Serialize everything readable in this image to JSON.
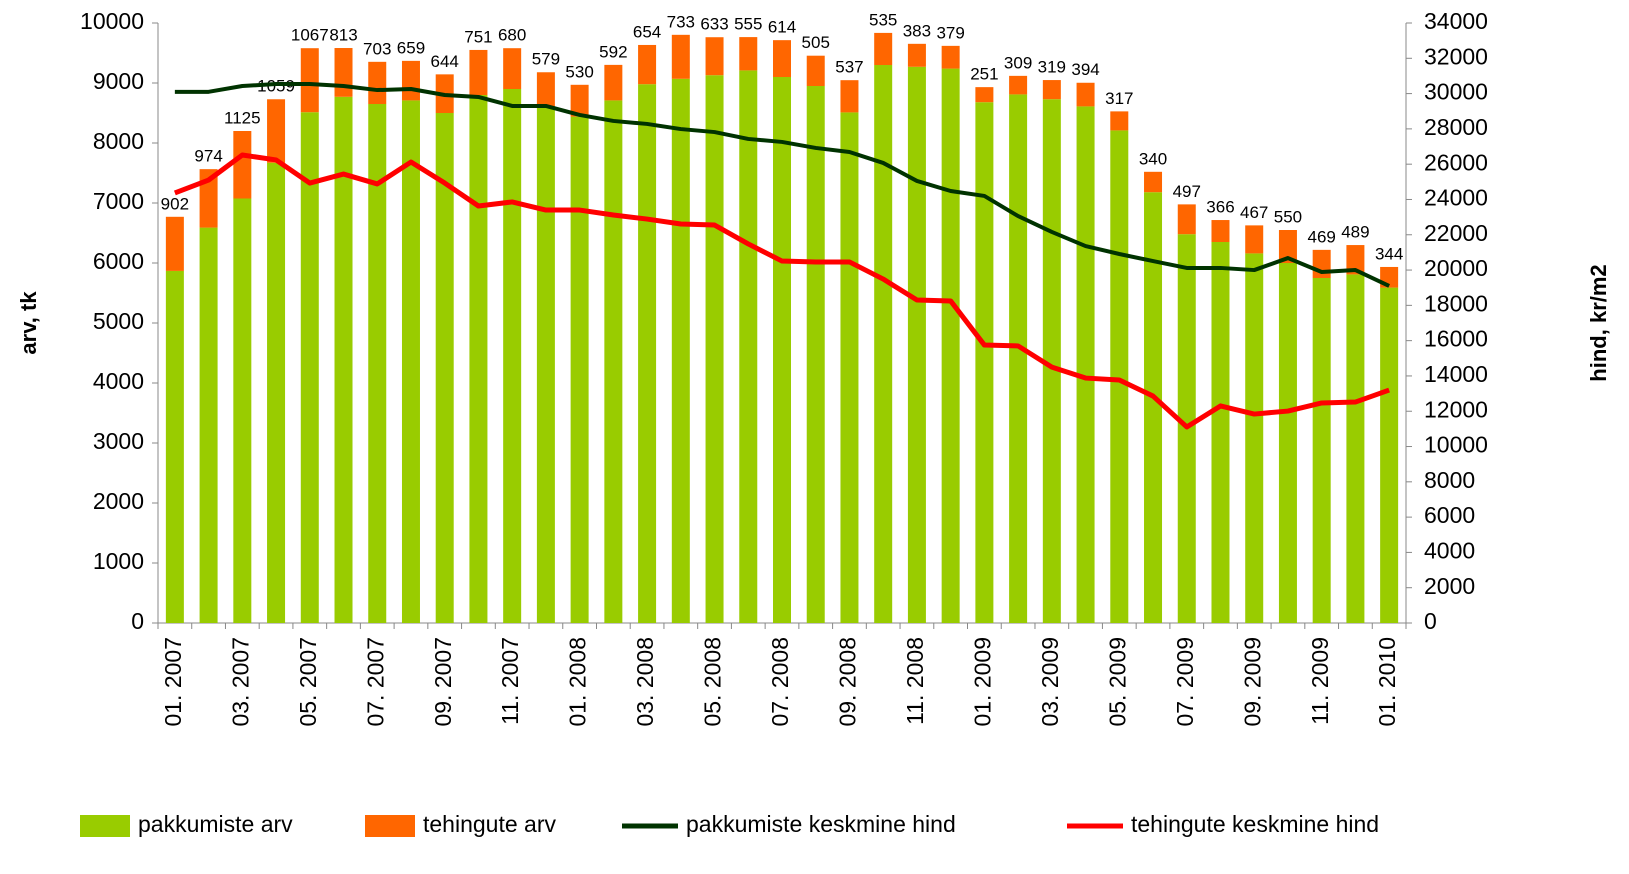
{
  "chart_data": {
    "type": "bar",
    "stacked": true,
    "categories": [
      "01. 2007",
      null,
      "03. 2007",
      null,
      "05. 2007",
      null,
      "07. 2007",
      null,
      "09. 2007",
      null,
      "11. 2007",
      null,
      "01. 2008",
      null,
      "03. 2008",
      null,
      "05. 2008",
      null,
      "07. 2008",
      null,
      "09. 2008",
      null,
      "11. 2008",
      null,
      "01. 2009",
      null,
      "03. 2009",
      null,
      "05. 2009",
      null,
      "07. 2009",
      null,
      "09. 2009",
      null,
      "11. 2009",
      null,
      "01. 2010"
    ],
    "ylabel": "arv, tk",
    "y2label": "hind, kr/m2",
    "ylim": [
      0,
      10000
    ],
    "yticks": [
      0,
      1000,
      2000,
      3000,
      4000,
      5000,
      6000,
      7000,
      8000,
      9000,
      10000
    ],
    "y2lim": [
      0,
      34000
    ],
    "y2ticks": [
      0,
      2000,
      4000,
      6000,
      8000,
      10000,
      12000,
      14000,
      16000,
      18000,
      20000,
      22000,
      24000,
      26000,
      28000,
      30000,
      32000,
      34000
    ],
    "series": [
      {
        "name": "pakkumiste arv",
        "type": "bar",
        "color": "#99cc00",
        "values": [
          5868,
          6590,
          7075,
          7670,
          8513,
          8770,
          8650,
          8710,
          8500,
          8800,
          8900,
          8600,
          8440,
          8710,
          8980,
          9070,
          9130,
          9210,
          9100,
          8950,
          8510,
          9300,
          9270,
          9240,
          8680,
          8810,
          8730,
          8610,
          8210,
          7180,
          6480,
          6350,
          6160,
          6000,
          5750,
          5810,
          5590
        ]
      },
      {
        "name": "tehingute arv",
        "type": "bar",
        "color": "#ff6600",
        "values": [
          902,
          974,
          1125,
          1059,
          1067,
          813,
          703,
          659,
          644,
          751,
          680,
          579,
          530,
          592,
          654,
          733,
          633,
          555,
          614,
          505,
          537,
          535,
          383,
          379,
          251,
          309,
          319,
          394,
          317,
          340,
          497,
          366,
          467,
          550,
          469,
          489,
          344
        ]
      },
      {
        "name": "pakkumiste keskmine hind",
        "type": "line",
        "axis": "y2",
        "color": "#003300",
        "values": [
          30100,
          30100,
          30430,
          30540,
          30540,
          30430,
          30200,
          30260,
          29920,
          29810,
          29300,
          29300,
          28790,
          28450,
          28280,
          27990,
          27820,
          27430,
          27260,
          26920,
          26690,
          26070,
          25050,
          24480,
          24200,
          23060,
          22160,
          21360,
          20910,
          20510,
          20120,
          20120,
          20000,
          20680,
          19890,
          20000,
          19100
        ]
      },
      {
        "name": "tehingute keskmine hind",
        "type": "line",
        "axis": "y2",
        "color": "#ff0000",
        "values": [
          24370,
          25100,
          26520,
          26240,
          24930,
          25440,
          24880,
          26120,
          24930,
          23630,
          23860,
          23400,
          23400,
          23120,
          22890,
          22610,
          22550,
          21480,
          20510,
          20460,
          20460,
          19490,
          18300,
          18250,
          15750,
          15700,
          14500,
          13880,
          13770,
          12860,
          11110,
          12300,
          11840,
          12010,
          12470,
          12520,
          13200
        ]
      }
    ]
  }
}
